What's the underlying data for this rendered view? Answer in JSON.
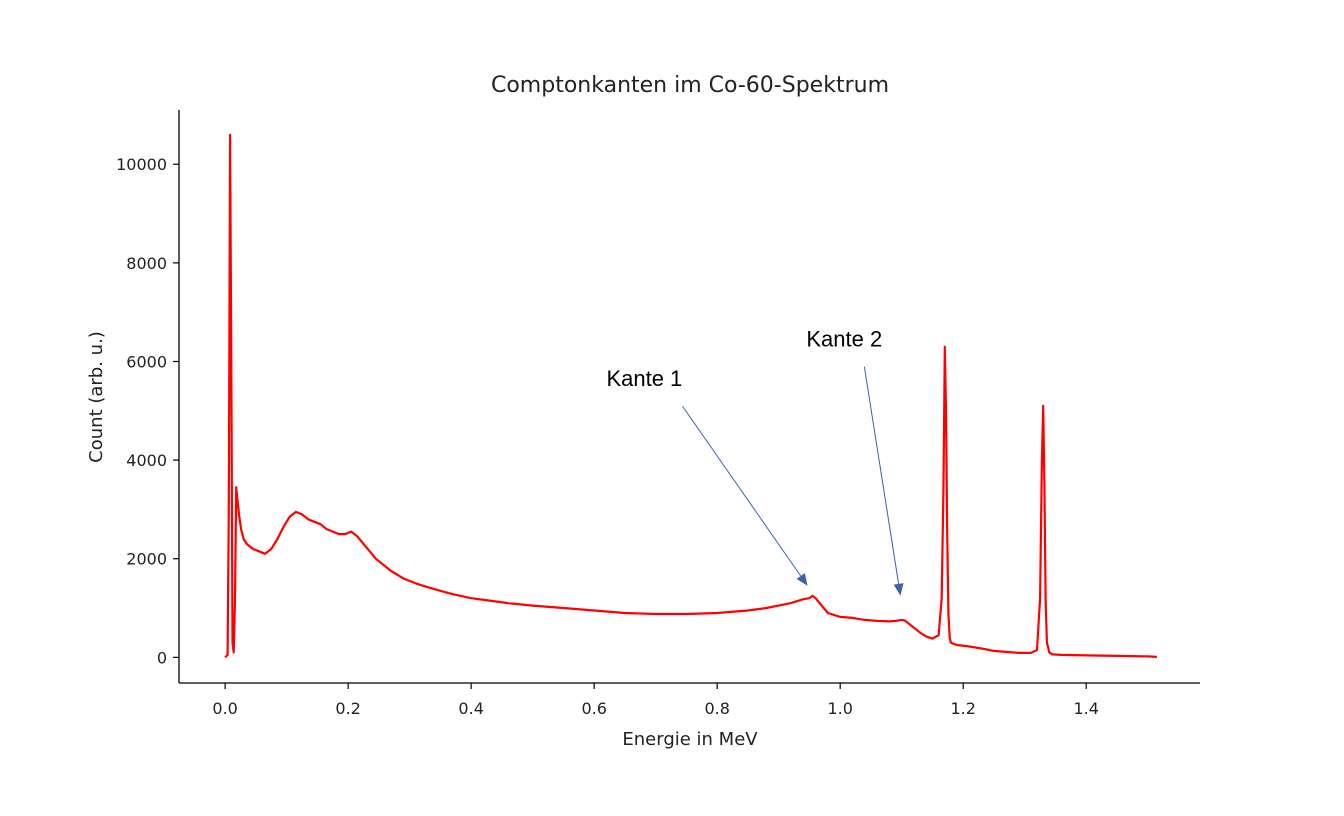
{
  "chart_data": {
    "type": "line",
    "title": "Comptonkanten im Co-60-Spektrum",
    "xlabel": "Energie in MeV",
    "ylabel": "Count (arb. u.)",
    "xlim": [
      -0.075,
      1.585
    ],
    "ylim": [
      -520,
      11100
    ],
    "xticks": [
      0.0,
      0.2,
      0.4,
      0.6,
      0.8,
      1.0,
      1.2,
      1.4
    ],
    "xtick_labels": [
      "0.0",
      "0.2",
      "0.4",
      "0.6",
      "0.8",
      "1.0",
      "1.2",
      "1.4"
    ],
    "yticks": [
      0,
      2000,
      4000,
      6000,
      8000,
      10000
    ],
    "ytick_labels": [
      "0",
      "2000",
      "4000",
      "6000",
      "8000",
      "10000"
    ],
    "grid": false,
    "spines": "left-bottom",
    "series": [
      {
        "color": "#ff0000",
        "x": [
          0.0,
          0.004,
          0.006,
          0.008,
          0.01,
          0.012,
          0.014,
          0.016,
          0.018,
          0.02,
          0.023,
          0.026,
          0.03,
          0.035,
          0.045,
          0.055,
          0.065,
          0.075,
          0.085,
          0.095,
          0.105,
          0.115,
          0.125,
          0.135,
          0.145,
          0.155,
          0.165,
          0.175,
          0.185,
          0.195,
          0.205,
          0.215,
          0.225,
          0.235,
          0.245,
          0.255,
          0.27,
          0.29,
          0.31,
          0.33,
          0.35,
          0.37,
          0.4,
          0.43,
          0.46,
          0.5,
          0.55,
          0.6,
          0.65,
          0.7,
          0.75,
          0.8,
          0.85,
          0.88,
          0.9,
          0.92,
          0.94,
          0.95,
          0.955,
          0.96,
          0.97,
          0.98,
          1.0,
          1.02,
          1.04,
          1.06,
          1.08,
          1.09,
          1.1,
          1.105,
          1.11,
          1.12,
          1.13,
          1.14,
          1.15,
          1.16,
          1.165,
          1.168,
          1.17,
          1.172,
          1.174,
          1.176,
          1.178,
          1.18,
          1.185,
          1.19,
          1.21,
          1.23,
          1.25,
          1.27,
          1.29,
          1.31,
          1.32,
          1.325,
          1.328,
          1.33,
          1.332,
          1.334,
          1.336,
          1.34,
          1.345,
          1.36,
          1.4,
          1.45,
          1.5,
          1.515
        ],
        "y": [
          0,
          50,
          3000,
          10600,
          6000,
          300,
          100,
          1200,
          3450,
          3200,
          2850,
          2600,
          2400,
          2300,
          2200,
          2150,
          2100,
          2200,
          2400,
          2650,
          2850,
          2950,
          2900,
          2800,
          2750,
          2700,
          2600,
          2550,
          2500,
          2500,
          2550,
          2450,
          2300,
          2150,
          2000,
          1900,
          1750,
          1600,
          1500,
          1420,
          1350,
          1280,
          1200,
          1150,
          1100,
          1050,
          1000,
          950,
          900,
          880,
          880,
          900,
          950,
          1000,
          1050,
          1100,
          1180,
          1200,
          1250,
          1200,
          1050,
          900,
          820,
          800,
          760,
          740,
          730,
          740,
          760,
          750,
          700,
          600,
          500,
          420,
          380,
          450,
          1200,
          3500,
          6300,
          5000,
          2500,
          900,
          400,
          300,
          270,
          250,
          220,
          180,
          130,
          110,
          90,
          90,
          150,
          1200,
          4000,
          5100,
          3500,
          1200,
          300,
          100,
          60,
          50,
          40,
          30,
          20,
          10
        ]
      }
    ],
    "annotations": [
      {
        "text": "Kante 1",
        "text_xy": [
          0.62,
          5500
        ],
        "arrow_to": [
          0.947,
          1450
        ]
      },
      {
        "text": "Kante 2",
        "text_xy": [
          0.945,
          6300
        ],
        "arrow_to": [
          1.098,
          1250
        ]
      }
    ],
    "annotation_arrow_color": "#3a62a8"
  }
}
